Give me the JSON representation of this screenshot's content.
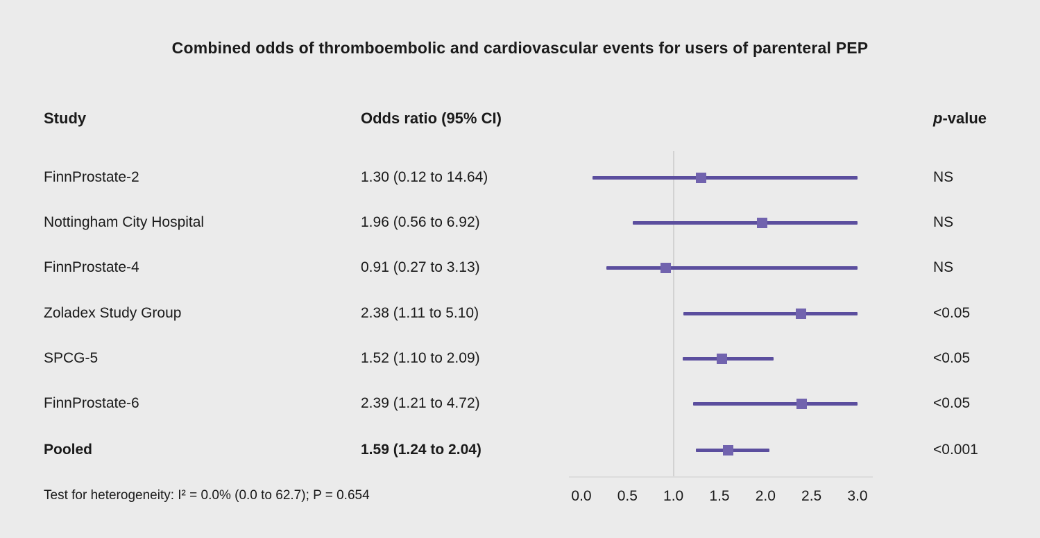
{
  "title": "Combined odds of thromboembolic and cardiovascular events for users of parenteral PEP",
  "columns": {
    "study": "Study",
    "or": "Odds ratio (95% CI)",
    "p_italic": "p",
    "p_rest": "-value"
  },
  "footnote": "Test for heterogeneity: I² = 0.0% (0.0 to 62.7); P = 0.654",
  "colors": {
    "background": "#ebebeb",
    "ci_line": "#5b4e9e",
    "marker": "#7163ae",
    "reference_line": "#d2d2d2",
    "text": "#1a1a1a"
  },
  "chart_data": {
    "type": "forest",
    "title": "Combined odds of thromboembolic and cardiovascular events for users of parenteral PEP",
    "xlabel": "",
    "xlim": [
      0.0,
      3.0
    ],
    "reference_line": 1.0,
    "axis_tick_values": [
      0.0,
      0.5,
      1.0,
      1.5,
      2.0,
      2.5,
      3.0
    ],
    "axis_tick_labels": [
      "0.0",
      "0.5",
      "1.0",
      "1.5",
      "2.0",
      "2.5",
      "3.0"
    ],
    "legend": "none",
    "grid": "off",
    "rows": [
      {
        "study": "FinnProstate-2",
        "or": 1.3,
        "ci_low": 0.12,
        "ci_high": 14.64,
        "or_label": "1.30 (0.12 to 14.64)",
        "p": "NS",
        "bold": false
      },
      {
        "study": "Nottingham City Hospital",
        "or": 1.96,
        "ci_low": 0.56,
        "ci_high": 6.92,
        "or_label": "1.96 (0.56 to 6.92)",
        "p": "NS",
        "bold": false
      },
      {
        "study": "FinnProstate-4",
        "or": 0.91,
        "ci_low": 0.27,
        "ci_high": 3.13,
        "or_label": "0.91 (0.27 to 3.13)",
        "p": "NS",
        "bold": false
      },
      {
        "study": "Zoladex Study Group",
        "or": 2.38,
        "ci_low": 1.11,
        "ci_high": 5.1,
        "or_label": "2.38 (1.11 to 5.10)",
        "p": "<0.05",
        "bold": false
      },
      {
        "study": "SPCG-5",
        "or": 1.52,
        "ci_low": 1.1,
        "ci_high": 2.09,
        "or_label": "1.52 (1.10 to 2.09)",
        "p": "<0.05",
        "bold": false
      },
      {
        "study": "FinnProstate-6",
        "or": 2.39,
        "ci_low": 1.21,
        "ci_high": 4.72,
        "or_label": "2.39 (1.21 to 4.72)",
        "p": "<0.05",
        "bold": false
      },
      {
        "study": "Pooled",
        "or": 1.59,
        "ci_low": 1.24,
        "ci_high": 2.04,
        "or_label": "1.59 (1.24 to 2.04)",
        "p": "<0.001",
        "bold": true
      }
    ]
  }
}
